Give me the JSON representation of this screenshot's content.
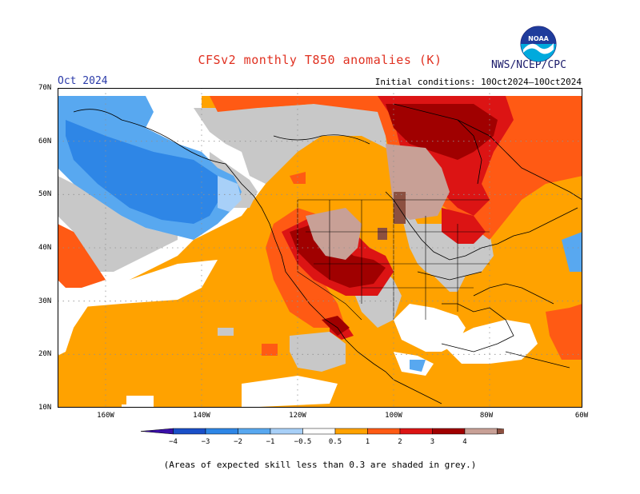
{
  "header": {
    "title": "CFSv2 monthly T850 anomalies (K)",
    "agency": "NWS/NCEP/CPC",
    "period": "Oct 2024",
    "initial_conditions": "Initial conditions: 10Oct2024–10Oct2024",
    "logo_text": "NOAA"
  },
  "axes": {
    "latitudes": [
      "70N",
      "60N",
      "50N",
      "40N",
      "30N",
      "20N",
      "10N"
    ],
    "longitudes": [
      "160W",
      "140W",
      "120W",
      "100W",
      "80W",
      "60W"
    ]
  },
  "colorbar": {
    "labels": [
      "−4",
      "−3",
      "−2",
      "−1",
      "−0.5",
      "0.5",
      "1",
      "2",
      "3",
      "4"
    ],
    "colors": [
      "#3a0fa8",
      "#1a4fc8",
      "#2e86e6",
      "#58a8f0",
      "#a8d0f8",
      "#ffffff",
      "#ffa200",
      "#ff5a14",
      "#dc1414",
      "#a00000",
      "#c8a096",
      "#8c5040"
    ]
  },
  "palette": {
    "grey_low_skill": "#c8c8c8",
    "light_orange": "#ffa200",
    "orange_red": "#ff5a14",
    "red": "#dc1414",
    "dark_red": "#a00000",
    "blue_medium": "#2e86e6",
    "blue_light": "#58a8f0",
    "blue_pale": "#a8d0f8"
  },
  "footnote": "(Areas of expected skill less than 0.3 are shaded in grey.)"
}
